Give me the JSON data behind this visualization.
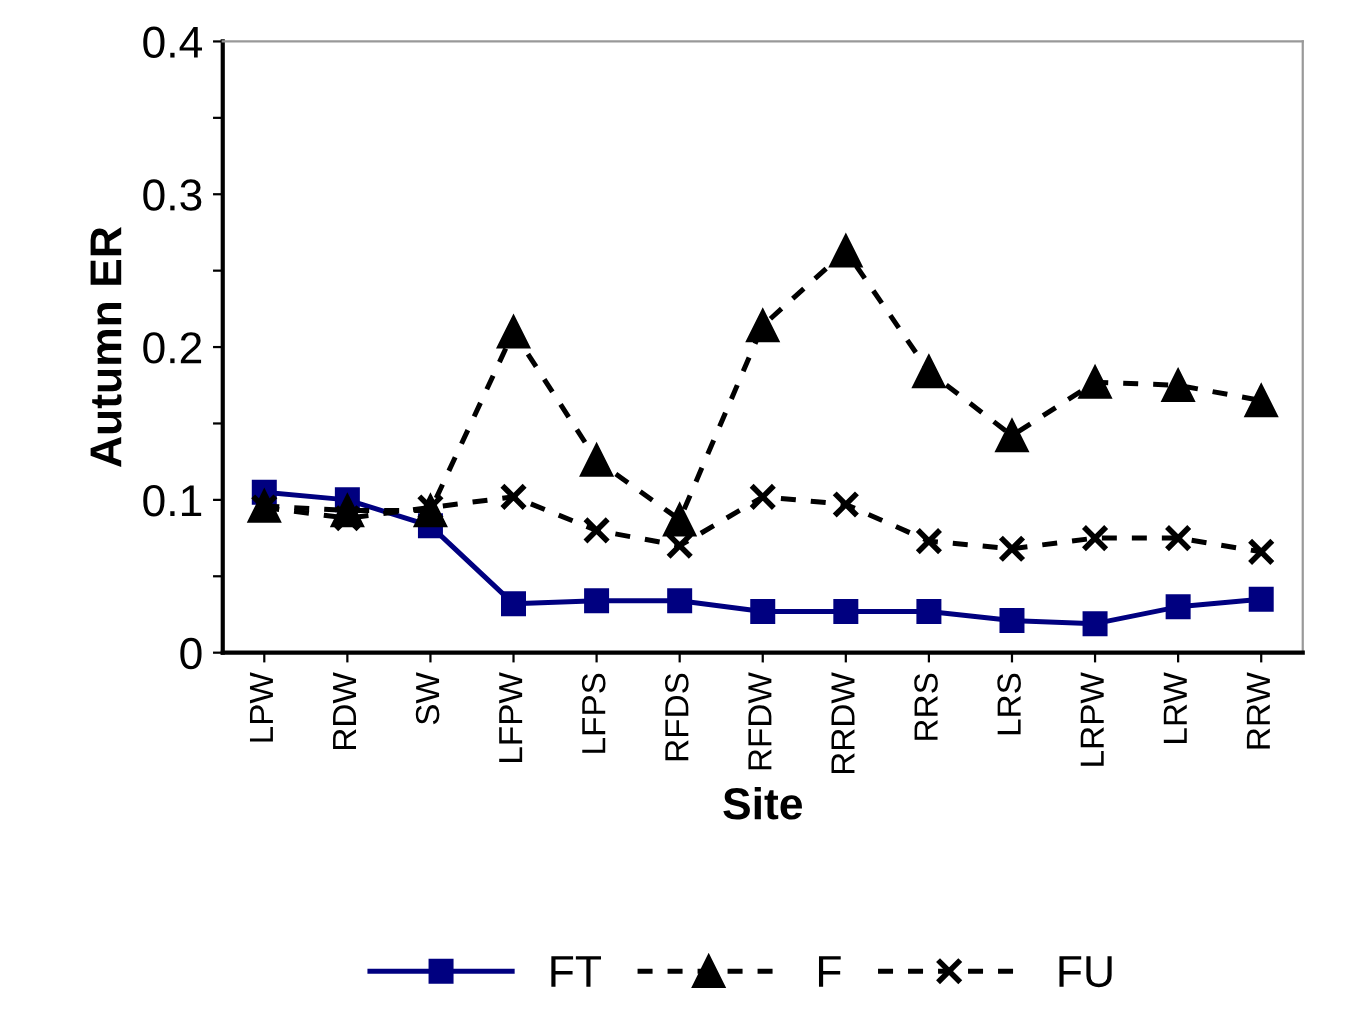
{
  "chart_data": {
    "type": "line",
    "xlabel": "Site",
    "ylabel": "Autumn ER",
    "categories": [
      "LPW",
      "RDW",
      "SW",
      "LFPW",
      "LFPS",
      "RFDS",
      "RFDW",
      "RRDW",
      "RRS",
      "LRS",
      "LRPW",
      "LRW",
      "RRW"
    ],
    "series": [
      {
        "name": "FT",
        "color": "#000080",
        "marker": "square",
        "line_style": "solid",
        "values": [
          0.105,
          0.1,
          0.083,
          0.032,
          0.034,
          0.034,
          0.027,
          0.027,
          0.027,
          0.021,
          0.019,
          0.03,
          0.035
        ]
      },
      {
        "name": "F",
        "color": "#000000",
        "marker": "triangle",
        "line_style": "dashed",
        "values": [
          0.096,
          0.093,
          0.093,
          0.21,
          0.126,
          0.087,
          0.214,
          0.263,
          0.184,
          0.142,
          0.177,
          0.175,
          0.165
        ]
      },
      {
        "name": "FU",
        "color": "#000000",
        "marker": "cross",
        "line_style": "dashed",
        "values": [
          0.095,
          0.088,
          0.095,
          0.102,
          0.08,
          0.07,
          0.102,
          0.097,
          0.073,
          0.068,
          0.075,
          0.075,
          0.066
        ]
      }
    ],
    "ylim": [
      0,
      0.4
    ],
    "yticks": [
      {
        "value": 0,
        "label": "0"
      },
      {
        "value": 0.05,
        "label": null
      },
      0.1,
      {
        "value": 0.15,
        "label": null
      },
      0.2,
      {
        "value": 0.25,
        "label": null
      },
      0.3,
      {
        "value": 0.35,
        "label": null
      },
      0.4
    ],
    "grid": false,
    "legend": "bottom"
  }
}
